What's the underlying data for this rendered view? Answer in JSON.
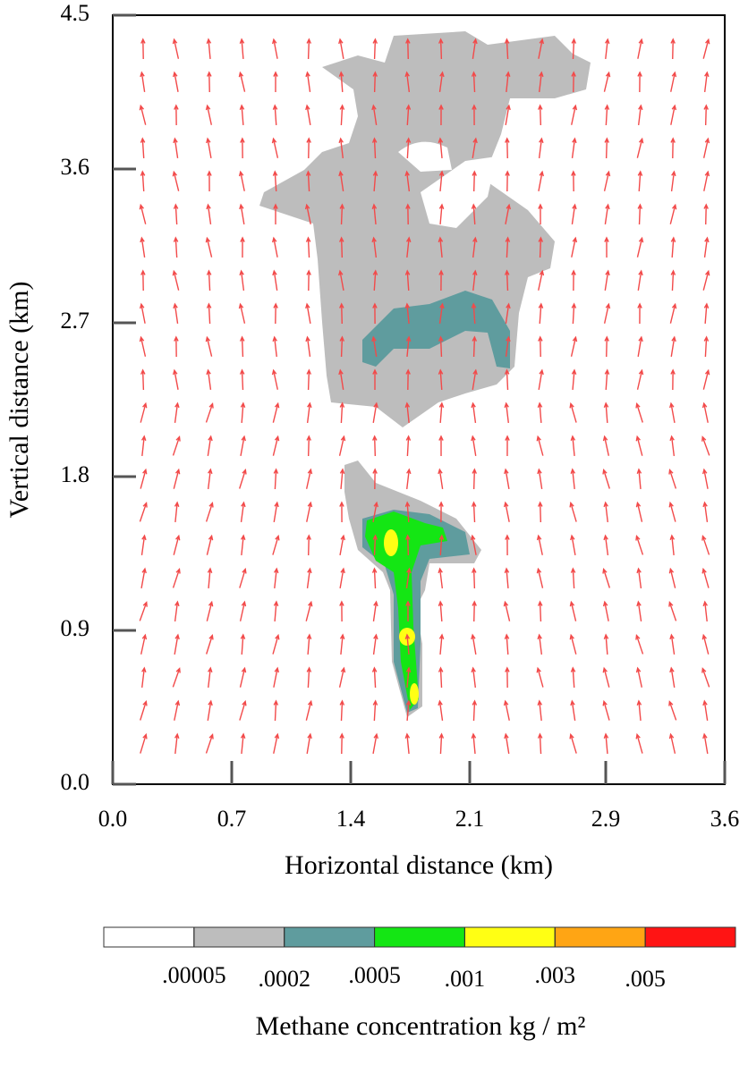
{
  "chart_data": {
    "type": "contour",
    "xlabel": "Horizontal distance (km)",
    "ylabel": "Vertical distance (km)",
    "xlim": [
      0,
      3.6
    ],
    "ylim": [
      0,
      4.5
    ],
    "xticks": [
      {
        "value": 0,
        "label": "0.0"
      },
      0.7,
      1.4,
      2.1,
      2.9,
      3.6
    ],
    "yticks": [
      {
        "value": 0,
        "label": "0.0"
      },
      0.9,
      1.8,
      2.7,
      3.6,
      4.5
    ],
    "levels": [
      {
        "value": 5e-05,
        "label": ".00005"
      },
      {
        "value": 0.0002,
        "label": ".0002"
      },
      {
        "value": 0.0005,
        "label": ".0005"
      },
      {
        "value": 0.001,
        "label": ".001"
      },
      {
        "value": 0.003,
        "label": ".003"
      },
      {
        "value": 0.005,
        "label": ".005"
      }
    ],
    "colors": [
      "#ffffff",
      "#bdbdbd",
      "#5f9c9e",
      "#14e614",
      "#ffff14",
      "#ffa514",
      "#ff1414"
    ],
    "colorbar_label": "Methane concentration kg / m²",
    "vector_color": "#f24a4a"
  }
}
